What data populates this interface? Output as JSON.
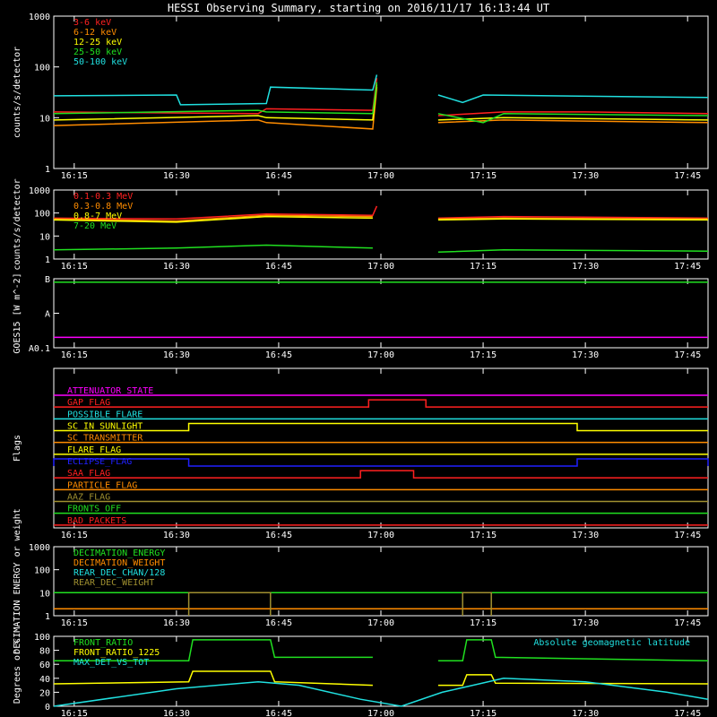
{
  "title": "HESSI Observing Summary, starting on 2016/11/17 16:13:44 UT",
  "time_ticks": [
    "16:15",
    "16:30",
    "16:45",
    "17:00",
    "17:15",
    "17:30",
    "17:45"
  ],
  "colors": {
    "red": "#ff2020",
    "orange": "#ff8c00",
    "yellow": "#ffff00",
    "green": "#20e020",
    "cyan": "#20e0e0",
    "magenta": "#ff00ff",
    "blue": "#2020ff",
    "olive": "#a09030",
    "white": "#ffffff"
  },
  "chart_data": [
    {
      "type": "line",
      "ylabel": "counts/s/detector",
      "yscale": "log",
      "ylim": [
        1,
        1000
      ],
      "y_ticks": [
        "1000",
        "100",
        "10",
        "1"
      ],
      "legend": [
        "3-6 keV",
        "6-12 keV",
        "12-25 keV",
        "25-50 keV",
        "50-100 keV"
      ],
      "series": [
        {
          "name": "3-6 keV",
          "color": "red",
          "segments": [
            [
              [
                16.2,
                13
              ],
              [
                16.7,
                12
              ],
              [
                16.72,
                15
              ],
              [
                16.98,
                14
              ],
              [
                16.99,
                60
              ]
            ],
            [
              [
                17.14,
                11
              ],
              [
                17.3,
                13
              ],
              [
                17.5,
                13
              ],
              [
                17.8,
                12
              ]
            ]
          ]
        },
        {
          "name": "6-12 keV",
          "color": "orange",
          "segments": [
            [
              [
                16.2,
                7
              ],
              [
                16.7,
                9
              ],
              [
                16.72,
                8
              ],
              [
                16.98,
                6
              ],
              [
                16.99,
                40
              ]
            ],
            [
              [
                17.14,
                8
              ],
              [
                17.3,
                9
              ],
              [
                17.8,
                8
              ]
            ]
          ]
        },
        {
          "name": "12-25 keV",
          "color": "yellow",
          "segments": [
            [
              [
                16.2,
                9
              ],
              [
                16.7,
                11
              ],
              [
                16.72,
                10
              ],
              [
                16.98,
                9
              ],
              [
                16.99,
                45
              ]
            ],
            [
              [
                17.14,
                9
              ],
              [
                17.3,
                10
              ],
              [
                17.8,
                9
              ]
            ]
          ]
        },
        {
          "name": "25-50 keV",
          "color": "green",
          "segments": [
            [
              [
                16.2,
                12
              ],
              [
                16.7,
                14
              ],
              [
                16.72,
                13
              ],
              [
                16.98,
                12
              ],
              [
                16.99,
                50
              ]
            ],
            [
              [
                17.14,
                12
              ],
              [
                17.25,
                8
              ],
              [
                17.3,
                12
              ],
              [
                17.8,
                11
              ]
            ]
          ]
        },
        {
          "name": "50-100 keV",
          "color": "cyan",
          "segments": [
            [
              [
                16.2,
                27
              ],
              [
                16.5,
                28
              ],
              [
                16.51,
                18
              ],
              [
                16.72,
                19
              ],
              [
                16.73,
                40
              ],
              [
                16.98,
                35
              ],
              [
                16.99,
                70
              ]
            ],
            [
              [
                17.14,
                28
              ],
              [
                17.2,
                20
              ],
              [
                17.25,
                28
              ],
              [
                17.8,
                25
              ]
            ]
          ]
        }
      ]
    },
    {
      "type": "line",
      "ylabel": "counts/s/detector",
      "yscale": "log",
      "ylim": [
        1,
        1000
      ],
      "y_ticks": [
        "1000",
        "100",
        "10",
        "1"
      ],
      "legend": [
        "0.1-0.3 MeV",
        "0.3-0.8 MeV",
        "0.8-7 MeV",
        "7-20 MeV"
      ],
      "series": [
        {
          "name": "0.1-0.3 MeV",
          "color": "red",
          "segments": [
            [
              [
                16.2,
                60
              ],
              [
                16.5,
                55
              ],
              [
                16.72,
                90
              ],
              [
                16.98,
                80
              ],
              [
                16.99,
                200
              ]
            ],
            [
              [
                17.14,
                60
              ],
              [
                17.3,
                70
              ],
              [
                17.8,
                60
              ]
            ]
          ]
        },
        {
          "name": "0.3-0.8 MeV",
          "color": "orange",
          "segments": [
            [
              [
                16.2,
                55
              ],
              [
                16.5,
                45
              ],
              [
                16.72,
                80
              ],
              [
                16.98,
                70
              ]
            ],
            [
              [
                17.14,
                55
              ],
              [
                17.3,
                60
              ],
              [
                17.8,
                55
              ]
            ]
          ]
        },
        {
          "name": "0.8-7 MeV",
          "color": "yellow",
          "segments": [
            [
              [
                16.2,
                50
              ],
              [
                16.5,
                40
              ],
              [
                16.72,
                70
              ],
              [
                16.98,
                60
              ]
            ],
            [
              [
                17.14,
                50
              ],
              [
                17.3,
                55
              ],
              [
                17.8,
                50
              ]
            ]
          ]
        },
        {
          "name": "7-20 MeV",
          "color": "green",
          "segments": [
            [
              [
                16.2,
                2.5
              ],
              [
                16.5,
                3
              ],
              [
                16.72,
                4
              ],
              [
                16.98,
                3
              ]
            ],
            [
              [
                17.14,
                2
              ],
              [
                17.3,
                2.5
              ],
              [
                17.8,
                2.2
              ]
            ]
          ]
        }
      ]
    },
    {
      "type": "line",
      "ylabel": "GOES15 [W m^-2]",
      "y_ticks": [
        "B",
        "A",
        "A0.1"
      ],
      "series": [
        {
          "name": "",
          "color": "green",
          "segments": [
            [
              [
                16.2,
                0.95
              ],
              [
                17.8,
                0.95
              ]
            ]
          ]
        },
        {
          "name": "",
          "color": "magenta",
          "segments": [
            [
              [
                16.2,
                0.15
              ],
              [
                17.8,
                0.15
              ]
            ]
          ]
        }
      ]
    },
    {
      "type": "table",
      "ylabel": "Flags",
      "flags": [
        {
          "label": "ATTENUATOR_STATE",
          "color": "magenta",
          "high": []
        },
        {
          "label": "GAP_FLAG",
          "color": "red",
          "high": [
            [
              16.97,
              17.11
            ]
          ]
        },
        {
          "label": "POSSIBLE_FLARE",
          "color": "cyan",
          "high": []
        },
        {
          "label": "SC_IN_SUNLIGHT",
          "color": "yellow",
          "high": [
            [
              16.53,
              17.48
            ]
          ]
        },
        {
          "label": "SC_TRANSMITTER",
          "color": "orange",
          "high": []
        },
        {
          "label": "FLARE_FLAG",
          "color": "yellow",
          "high": []
        },
        {
          "label": "ECLIPSE_FLAG",
          "color": "blue",
          "high": [
            [
              16.2,
              16.53
            ],
            [
              17.48,
              17.8
            ]
          ]
        },
        {
          "label": "SAA_FLAG",
          "color": "red",
          "high": [
            [
              16.95,
              17.08
            ]
          ]
        },
        {
          "label": "PARTICLE_FLAG",
          "color": "orange",
          "high": []
        },
        {
          "label": "AAZ_FLAG",
          "color": "olive",
          "high": []
        },
        {
          "label": "FRONTS_OFF",
          "color": "green",
          "high": []
        },
        {
          "label": "BAD_PACKETS",
          "color": "red",
          "high": []
        }
      ]
    },
    {
      "type": "line",
      "ylabel": "DECIMATION ENERGY or weight",
      "yscale": "log",
      "ylim": [
        1,
        1000
      ],
      "y_ticks": [
        "1000",
        "100",
        "10",
        "1"
      ],
      "legend": [
        "DECIMATION_ENERGY",
        "DECIMATION_WEIGHT",
        "REAR_DEC_CHAN/128",
        "REAR_DEC_WEIGHT"
      ],
      "series": [
        {
          "name": "DECIMATION_ENERGY",
          "color": "green",
          "segments": [
            [
              [
                16.2,
                10
              ],
              [
                17.8,
                10
              ]
            ]
          ]
        },
        {
          "name": "DECIMATION_WEIGHT",
          "color": "orange",
          "segments": [
            [
              [
                16.2,
                2
              ],
              [
                17.8,
                2
              ]
            ]
          ]
        },
        {
          "name": "REAR_DEC_CHAN/128",
          "color": "cyan",
          "segments": [
            [
              [
                16.53,
                10
              ],
              [
                16.73,
                10
              ]
            ],
            [
              [
                17.2,
                10
              ],
              [
                17.27,
                10
              ]
            ]
          ]
        },
        {
          "name": "REAR_DEC_WEIGHT",
          "color": "olive",
          "segments": [
            [
              [
                16.53,
                1
              ],
              [
                16.53,
                10
              ],
              [
                16.73,
                10
              ],
              [
                16.73,
                1
              ]
            ],
            [
              [
                17.2,
                1
              ],
              [
                17.2,
                10
              ],
              [
                17.27,
                10
              ],
              [
                17.27,
                1
              ]
            ]
          ]
        }
      ]
    },
    {
      "type": "line",
      "ylabel": "Degrees or %",
      "ylim": [
        0,
        100
      ],
      "y_ticks": [
        "100",
        "80",
        "60",
        "40",
        "20",
        "0"
      ],
      "legend": [
        "FRONT_RATIO",
        "FRONT_RATIO_1225",
        "MAX_DET_VS_TOT"
      ],
      "annotation": "Absolute geomagnetic latitude",
      "series": [
        {
          "name": "FRONT_RATIO",
          "color": "green",
          "segments": [
            [
              [
                16.2,
                65
              ],
              [
                16.53,
                65
              ],
              [
                16.54,
                95
              ],
              [
                16.73,
                95
              ],
              [
                16.74,
                70
              ],
              [
                16.98,
                70
              ]
            ],
            [
              [
                17.14,
                65
              ],
              [
                17.2,
                65
              ],
              [
                17.21,
                95
              ],
              [
                17.27,
                95
              ],
              [
                17.28,
                70
              ],
              [
                17.8,
                65
              ]
            ]
          ]
        },
        {
          "name": "FRONT_RATIO_1225",
          "color": "yellow",
          "segments": [
            [
              [
                16.2,
                32
              ],
              [
                16.53,
                35
              ],
              [
                16.54,
                50
              ],
              [
                16.73,
                50
              ],
              [
                16.74,
                35
              ],
              [
                16.98,
                30
              ]
            ],
            [
              [
                17.14,
                30
              ],
              [
                17.2,
                30
              ],
              [
                17.21,
                45
              ],
              [
                17.27,
                45
              ],
              [
                17.28,
                33
              ],
              [
                17.8,
                32
              ]
            ]
          ]
        },
        {
          "name": "Absolute geomagnetic latitude",
          "color": "cyan",
          "segments": [
            [
              [
                16.2,
                0
              ],
              [
                16.5,
                25
              ],
              [
                16.7,
                35
              ],
              [
                16.8,
                30
              ],
              [
                16.95,
                10
              ],
              [
                17.05,
                0
              ],
              [
                17.15,
                20
              ],
              [
                17.3,
                40
              ],
              [
                17.5,
                35
              ],
              [
                17.7,
                20
              ],
              [
                17.8,
                10
              ]
            ]
          ]
        }
      ]
    }
  ]
}
